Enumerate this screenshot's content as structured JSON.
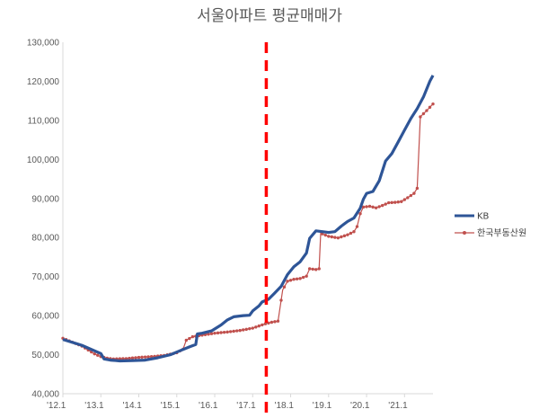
{
  "chart_data": {
    "type": "line",
    "title": "서울아파트 평균매매가",
    "xlabel": "",
    "ylabel": "",
    "x_tick_labels": [
      "'12.1",
      "'13.1",
      "'14.1",
      "'15.1",
      "'16.1",
      "'17.1",
      "'18.1",
      "'19.1",
      "'20.1",
      "'21.1"
    ],
    "y_tick_labels": [
      "40,000",
      "50,000",
      "60,000",
      "70,000",
      "80,000",
      "90,000",
      "100,000",
      "110,000",
      "120,000",
      "130,000"
    ],
    "ylim": [
      40000,
      130000
    ],
    "x_unit": "months since 2012-01",
    "xlim": [
      0,
      117
    ],
    "grid": false,
    "legend_position": "right",
    "annotation": "red dashed vertical line at 2017-05",
    "marker_x": 64.3,
    "colors": {
      "KB": "#2e5597",
      "한국부동산원": "#c0504d",
      "marker": "#ff0000"
    },
    "series": [
      {
        "name": "KB",
        "style": "thick line",
        "points": [
          [
            0,
            53900
          ],
          [
            6,
            52400
          ],
          [
            12,
            50300
          ],
          [
            13,
            48900
          ],
          [
            15,
            48600
          ],
          [
            18,
            48400
          ],
          [
            22,
            48500
          ],
          [
            26,
            48600
          ],
          [
            30,
            49200
          ],
          [
            34,
            50000
          ],
          [
            37,
            51000
          ],
          [
            40,
            52000
          ],
          [
            42,
            52600
          ],
          [
            42.5,
            55300
          ],
          [
            44,
            55500
          ],
          [
            47,
            56100
          ],
          [
            50,
            57600
          ],
          [
            52,
            58900
          ],
          [
            54,
            59700
          ],
          [
            57,
            60000
          ],
          [
            59,
            60100
          ],
          [
            60,
            61200
          ],
          [
            62,
            62500
          ],
          [
            63,
            63500
          ],
          [
            65,
            64200
          ],
          [
            67,
            65800
          ],
          [
            69,
            67500
          ],
          [
            71,
            70500
          ],
          [
            73,
            72500
          ],
          [
            75,
            73800
          ],
          [
            77,
            76000
          ],
          [
            78,
            79800
          ],
          [
            80,
            81700
          ],
          [
            82,
            81500
          ],
          [
            84,
            81300
          ],
          [
            86,
            81500
          ],
          [
            88,
            82900
          ],
          [
            90,
            84100
          ],
          [
            92,
            85000
          ],
          [
            94,
            87500
          ],
          [
            95,
            89800
          ],
          [
            96,
            91300
          ],
          [
            98,
            91800
          ],
          [
            100,
            94500
          ],
          [
            102,
            99600
          ],
          [
            104,
            101500
          ],
          [
            106,
            104500
          ],
          [
            108,
            107500
          ],
          [
            110,
            110500
          ],
          [
            112,
            113000
          ],
          [
            114,
            116000
          ],
          [
            116,
            120000
          ],
          [
            117,
            121500
          ]
        ]
      },
      {
        "name": "한국부동산원",
        "style": "thin line with dot markers",
        "points": [
          [
            0,
            54200
          ],
          [
            6,
            52200
          ],
          [
            10,
            50200
          ],
          [
            12,
            49500
          ],
          [
            14,
            49100
          ],
          [
            16,
            48900
          ],
          [
            20,
            49000
          ],
          [
            24,
            49300
          ],
          [
            28,
            49500
          ],
          [
            32,
            49800
          ],
          [
            36,
            50500
          ],
          [
            38,
            51400
          ],
          [
            39,
            53700
          ],
          [
            41,
            54600
          ],
          [
            44,
            55000
          ],
          [
            48,
            55500
          ],
          [
            52,
            55800
          ],
          [
            56,
            56200
          ],
          [
            60,
            56800
          ],
          [
            64,
            57900
          ],
          [
            66,
            58300
          ],
          [
            68,
            58600
          ],
          [
            69.5,
            66600
          ],
          [
            71,
            68800
          ],
          [
            73,
            69300
          ],
          [
            75,
            69500
          ],
          [
            77,
            70100
          ],
          [
            78,
            72000
          ],
          [
            80,
            71800
          ],
          [
            81,
            72000
          ],
          [
            81.5,
            81100
          ],
          [
            84,
            80300
          ],
          [
            87,
            79900
          ],
          [
            90,
            80700
          ],
          [
            92,
            81500
          ],
          [
            93,
            82800
          ],
          [
            94,
            86100
          ],
          [
            95,
            87800
          ],
          [
            97,
            88000
          ],
          [
            99,
            87600
          ],
          [
            101,
            88200
          ],
          [
            103,
            88900
          ],
          [
            105,
            89000
          ],
          [
            107,
            89200
          ],
          [
            109,
            90200
          ],
          [
            111,
            91300
          ],
          [
            112,
            92600
          ],
          [
            113,
            110900
          ],
          [
            115,
            112500
          ],
          [
            117,
            114200
          ]
        ]
      }
    ]
  }
}
